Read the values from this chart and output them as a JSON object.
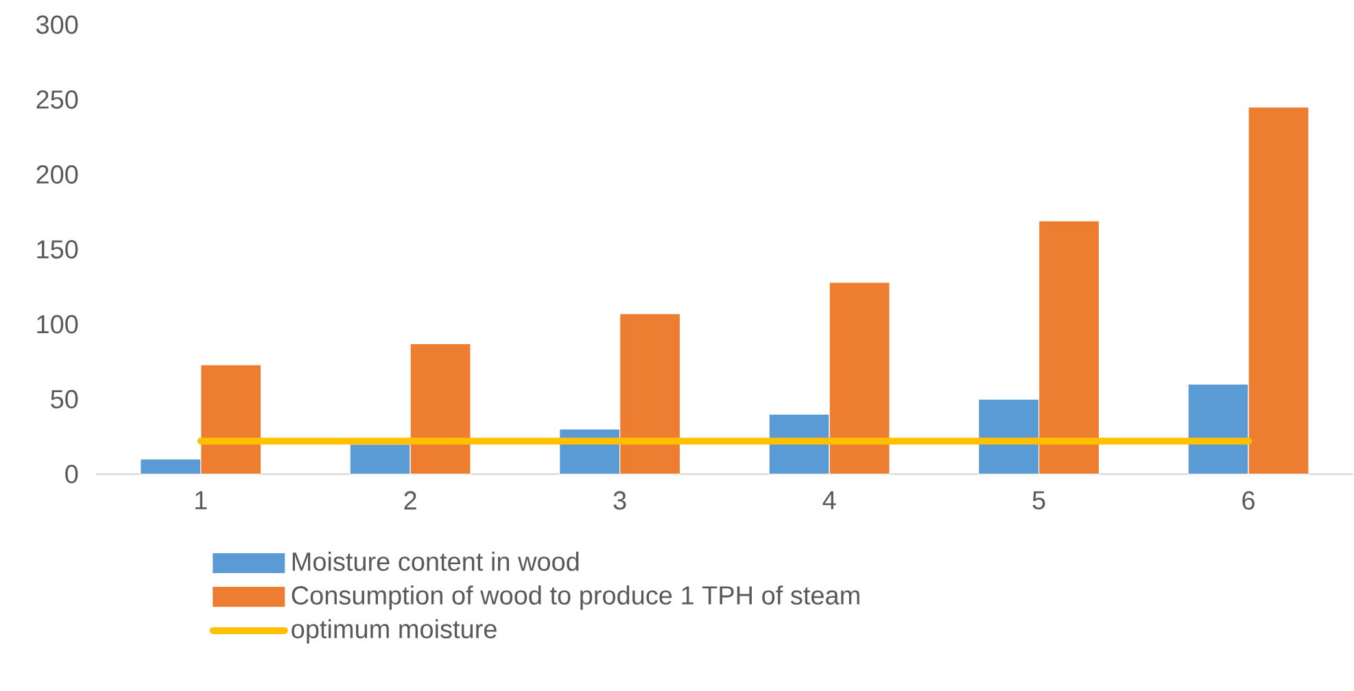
{
  "chart_data": {
    "type": "bar",
    "categories": [
      "1",
      "2",
      "3",
      "4",
      "5",
      "6"
    ],
    "series": [
      {
        "name": "Moisture content in wood",
        "color": "#5b9bd5",
        "values": [
          10,
          20,
          30,
          40,
          50,
          60
        ]
      },
      {
        "name": "Consumption of wood to produce 1 TPH of steam",
        "color": "#ed7d31",
        "values": [
          73,
          87,
          107,
          128,
          169,
          245
        ]
      },
      {
        "name": "optimum moisture",
        "type": "line",
        "color": "#ffc000",
        "values": [
          22,
          22,
          22,
          22,
          22,
          22
        ]
      }
    ],
    "ylim": [
      0,
      300
    ],
    "yticks": [
      0,
      50,
      100,
      150,
      200,
      250,
      300
    ],
    "legend": "bottom"
  }
}
